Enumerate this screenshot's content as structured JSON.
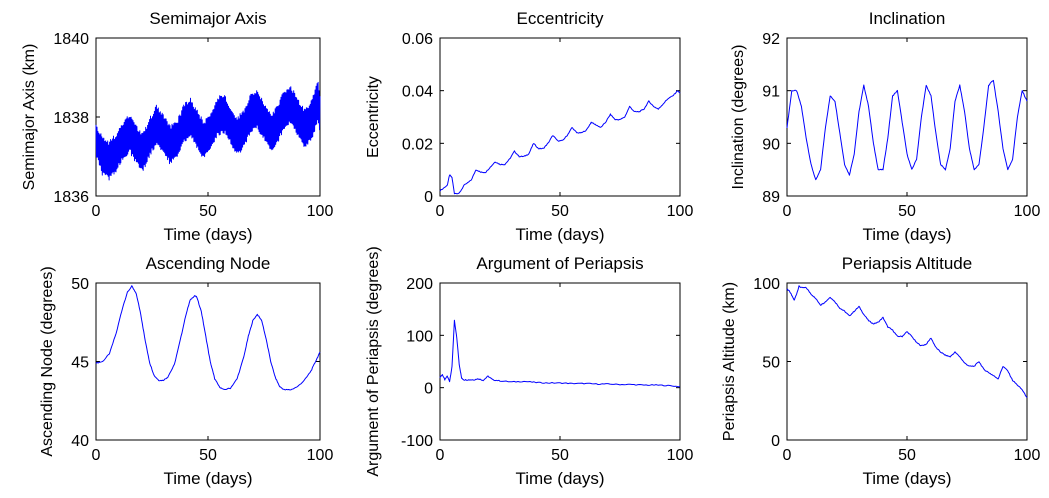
{
  "colors": {
    "series": "#0000ff",
    "axes": "#000000",
    "background": "#ffffff"
  },
  "chart_data": [
    {
      "type": "line",
      "title": "Semimajor Axis",
      "xlabel": "Time (days)",
      "ylabel": "Semimajor Axis (km)",
      "xlim": [
        0,
        100
      ],
      "ylim": [
        1836,
        1840
      ],
      "xticks": [
        0,
        50,
        100
      ],
      "yticks": [
        1836,
        1838,
        1840
      ],
      "grid": false,
      "series": [
        {
          "x": [
            0,
            3,
            6,
            9,
            12,
            15,
            18,
            21,
            24,
            27,
            30,
            33,
            36,
            39,
            42,
            45,
            48,
            51,
            54,
            57,
            60,
            63,
            66,
            69,
            72,
            75,
            78,
            81,
            84,
            87,
            90,
            93,
            96,
            99,
            100
          ],
          "y": [
            1837.4,
            1837.0,
            1836.9,
            1837.1,
            1837.4,
            1837.6,
            1837.3,
            1837.1,
            1837.5,
            1837.8,
            1837.6,
            1837.3,
            1837.4,
            1837.8,
            1838.0,
            1837.7,
            1837.4,
            1837.6,
            1838.0,
            1838.1,
            1837.8,
            1837.5,
            1837.7,
            1838.1,
            1838.2,
            1837.9,
            1837.6,
            1837.8,
            1838.2,
            1838.3,
            1838.0,
            1837.7,
            1837.9,
            1838.4,
            1838.1
          ],
          "amplitude": [
            0.4,
            0.5,
            0.5,
            0.5,
            0.5,
            0.5,
            0.5,
            0.5,
            0.5,
            0.5,
            0.5,
            0.5,
            0.5,
            0.5,
            0.5,
            0.5,
            0.5,
            0.5,
            0.5,
            0.5,
            0.5,
            0.5,
            0.5,
            0.5,
            0.5,
            0.5,
            0.5,
            0.5,
            0.5,
            0.5,
            0.5,
            0.5,
            0.5,
            0.6,
            0.5
          ]
        }
      ]
    },
    {
      "type": "line",
      "title": "Eccentricity",
      "xlabel": "Time (days)",
      "ylabel": "Eccentricity",
      "xlim": [
        0,
        100
      ],
      "ylim": [
        0,
        0.06
      ],
      "xticks": [
        0,
        50,
        100
      ],
      "yticks": [
        0,
        0.02,
        0.04,
        0.06
      ],
      "grid": false,
      "series": [
        {
          "x": [
            0,
            3,
            4,
            5,
            6,
            8,
            10,
            13,
            15,
            17,
            19,
            21,
            23,
            25,
            27,
            29,
            31,
            33,
            35,
            37,
            39,
            41,
            43,
            45,
            47,
            49,
            51,
            53,
            55,
            57,
            59,
            61,
            63,
            65,
            67,
            69,
            71,
            73,
            75,
            77,
            79,
            81,
            83,
            85,
            87,
            89,
            91,
            93,
            95,
            97,
            99,
            100
          ],
          "y": [
            0.002,
            0.004,
            0.008,
            0.007,
            0.001,
            0.001,
            0.004,
            0.006,
            0.01,
            0.009,
            0.009,
            0.011,
            0.013,
            0.012,
            0.012,
            0.014,
            0.017,
            0.015,
            0.015,
            0.016,
            0.02,
            0.018,
            0.018,
            0.02,
            0.023,
            0.021,
            0.021,
            0.023,
            0.026,
            0.024,
            0.024,
            0.025,
            0.028,
            0.027,
            0.026,
            0.028,
            0.031,
            0.029,
            0.029,
            0.03,
            0.034,
            0.032,
            0.032,
            0.033,
            0.036,
            0.034,
            0.033,
            0.035,
            0.037,
            0.038,
            0.04,
            0.039
          ]
        }
      ]
    },
    {
      "type": "line",
      "title": "Inclination",
      "xlabel": "Time (days)",
      "ylabel": "Inclination (degrees)",
      "xlim": [
        0,
        100
      ],
      "ylim": [
        89,
        92
      ],
      "xticks": [
        0,
        50,
        100
      ],
      "yticks": [
        89,
        90,
        91,
        92
      ],
      "grid": false,
      "series": [
        {
          "x": [
            0,
            2,
            4,
            6,
            8,
            10,
            12,
            14,
            16,
            18,
            20,
            22,
            24,
            26,
            28,
            30,
            32,
            34,
            36,
            38,
            40,
            42,
            44,
            46,
            48,
            50,
            52,
            54,
            56,
            58,
            60,
            62,
            64,
            66,
            68,
            70,
            72,
            74,
            76,
            78,
            80,
            82,
            84,
            86,
            88,
            90,
            92,
            94,
            96,
            98,
            100
          ],
          "y": [
            90.3,
            91.0,
            91.0,
            90.7,
            90.1,
            89.6,
            89.3,
            89.5,
            90.3,
            90.9,
            90.8,
            90.2,
            89.6,
            89.4,
            89.8,
            90.6,
            91.1,
            90.7,
            90.0,
            89.5,
            89.5,
            90.1,
            90.9,
            91.0,
            90.4,
            89.8,
            89.5,
            89.7,
            90.5,
            91.1,
            90.9,
            90.2,
            89.6,
            89.5,
            89.9,
            90.8,
            91.1,
            90.6,
            89.9,
            89.5,
            89.6,
            90.3,
            91.1,
            91.2,
            90.6,
            89.9,
            89.5,
            89.7,
            90.5,
            91.0,
            90.8
          ]
        }
      ]
    },
    {
      "type": "line",
      "title": "Ascending Node",
      "xlabel": "Time (days)",
      "ylabel": "Ascending Node (degrees)",
      "xlim": [
        0,
        100
      ],
      "ylim": [
        40,
        50
      ],
      "xticks": [
        0,
        50,
        100
      ],
      "yticks": [
        40,
        45,
        50
      ],
      "grid": false,
      "series": [
        {
          "x": [
            0,
            3,
            6,
            9,
            12,
            14,
            16,
            18,
            20,
            22,
            24,
            26,
            28,
            30,
            32,
            35,
            38,
            40,
            42,
            44,
            45,
            47,
            49,
            51,
            53,
            55,
            57,
            60,
            63,
            66,
            68,
            70,
            72,
            74,
            76,
            78,
            80,
            82,
            84,
            87,
            90,
            93,
            96,
            98,
            100
          ],
          "y": [
            44.9,
            45.0,
            45.5,
            46.8,
            48.5,
            49.4,
            49.8,
            49.3,
            48.0,
            46.3,
            44.9,
            44.1,
            43.8,
            43.8,
            44.0,
            44.8,
            46.6,
            47.9,
            48.9,
            49.2,
            49.1,
            48.2,
            46.6,
            45.0,
            43.9,
            43.4,
            43.2,
            43.3,
            43.9,
            45.3,
            46.6,
            47.6,
            48.0,
            47.6,
            46.4,
            45.0,
            44.0,
            43.4,
            43.2,
            43.2,
            43.4,
            43.8,
            44.4,
            45.0,
            45.6
          ]
        }
      ]
    },
    {
      "type": "line",
      "title": "Argument of Periapsis",
      "xlabel": "Time (days)",
      "ylabel": "Argument of Periapsis (degrees)",
      "xlim": [
        0,
        100
      ],
      "ylim": [
        -100,
        200
      ],
      "xticks": [
        0,
        50,
        100
      ],
      "yticks": [
        -100,
        0,
        100,
        200
      ],
      "grid": false,
      "series": [
        {
          "x": [
            0,
            1,
            2,
            3,
            4,
            5,
            6,
            7,
            8,
            9,
            10,
            12,
            14,
            16,
            18,
            20,
            22,
            25,
            30,
            35,
            40,
            45,
            50,
            55,
            60,
            65,
            70,
            75,
            80,
            85,
            90,
            95,
            100
          ],
          "y": [
            20,
            25,
            15,
            22,
            12,
            40,
            128,
            95,
            45,
            18,
            15,
            15,
            15,
            17,
            14,
            22,
            15,
            13,
            11,
            12,
            10,
            9,
            9,
            8,
            8,
            7,
            7,
            6,
            6,
            5,
            5,
            4,
            2
          ]
        }
      ]
    },
    {
      "type": "line",
      "title": "Periapsis Altitude",
      "xlabel": "Time (days)",
      "ylabel": "Periapsis Altitude (km)",
      "xlim": [
        0,
        100
      ],
      "ylim": [
        0,
        100
      ],
      "xticks": [
        0,
        50,
        100
      ],
      "yticks": [
        0,
        50,
        100
      ],
      "grid": false,
      "series": [
        {
          "x": [
            0,
            1,
            2,
            3,
            4,
            5,
            6,
            8,
            10,
            12,
            14,
            16,
            18,
            20,
            22,
            24,
            26,
            28,
            30,
            32,
            34,
            36,
            38,
            40,
            42,
            44,
            46,
            48,
            50,
            52,
            54,
            56,
            58,
            60,
            62,
            64,
            66,
            68,
            70,
            72,
            74,
            76,
            78,
            80,
            82,
            84,
            86,
            88,
            90,
            92,
            94,
            96,
            98,
            100
          ],
          "y": [
            96,
            95,
            92,
            89,
            93,
            98,
            97,
            97,
            93,
            90,
            86,
            88,
            91,
            88,
            84,
            82,
            79,
            82,
            85,
            80,
            76,
            74,
            75,
            78,
            72,
            70,
            66,
            66,
            69,
            66,
            62,
            60,
            61,
            65,
            59,
            56,
            54,
            53,
            56,
            53,
            49,
            47,
            47,
            50,
            45,
            43,
            41,
            39,
            47,
            44,
            38,
            35,
            32,
            27
          ]
        }
      ]
    }
  ]
}
